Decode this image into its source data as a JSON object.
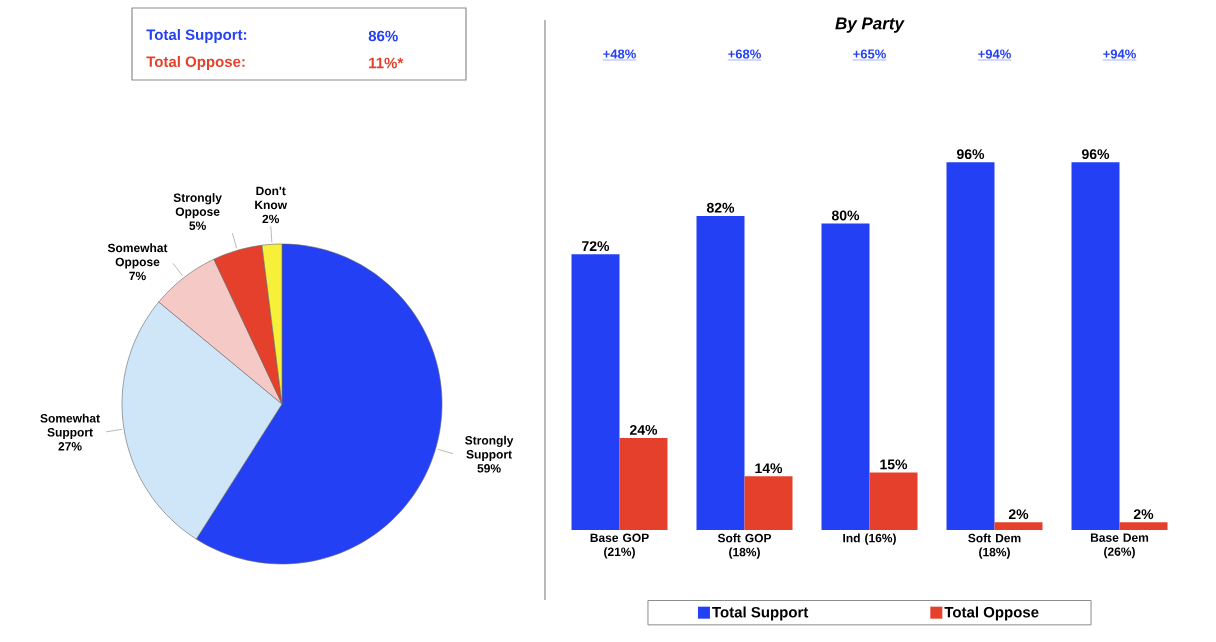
{
  "chart_data": [
    {
      "type": "pie",
      "categories": [
        "Strongly Support",
        "Somewhat Support",
        "Somewhat Oppose",
        "Strongly Oppose",
        "Don't Know"
      ],
      "values": [
        59,
        27,
        7,
        5,
        2
      ],
      "colors": [
        "#2440f5",
        "#cfe6f8",
        "#f4c9c6",
        "#e5402b",
        "#f7f03a"
      ],
      "value_labels": [
        "59%",
        "27%",
        "7%",
        "5%",
        "2%"
      ],
      "annotations": [
        "Total Support:",
        "86%",
        "Total Oppose:",
        "11%*"
      ]
    },
    {
      "type": "bar",
      "title": "By Party",
      "categories": [
        "Base GOP (21%)",
        "Soft GOP (18%)",
        "Ind (16%)",
        "Soft Dem (18%)",
        "Base Dem (26%)"
      ],
      "series": [
        {
          "name": "Total Support",
          "color": "#2440f5",
          "values": [
            72,
            82,
            80,
            96,
            96
          ],
          "value_labels": [
            "72%",
            "82%",
            "80%",
            "96%",
            "96%"
          ]
        },
        {
          "name": "Total Oppose",
          "color": "#e5402b",
          "values": [
            24,
            14,
            15,
            2,
            2
          ],
          "value_labels": [
            "24%",
            "14%",
            "15%",
            "2%",
            "2%"
          ]
        }
      ],
      "annotations": [
        "+48%",
        "+68%",
        "+65%",
        "+94%",
        "+94%"
      ],
      "legend": "bottom"
    }
  ]
}
